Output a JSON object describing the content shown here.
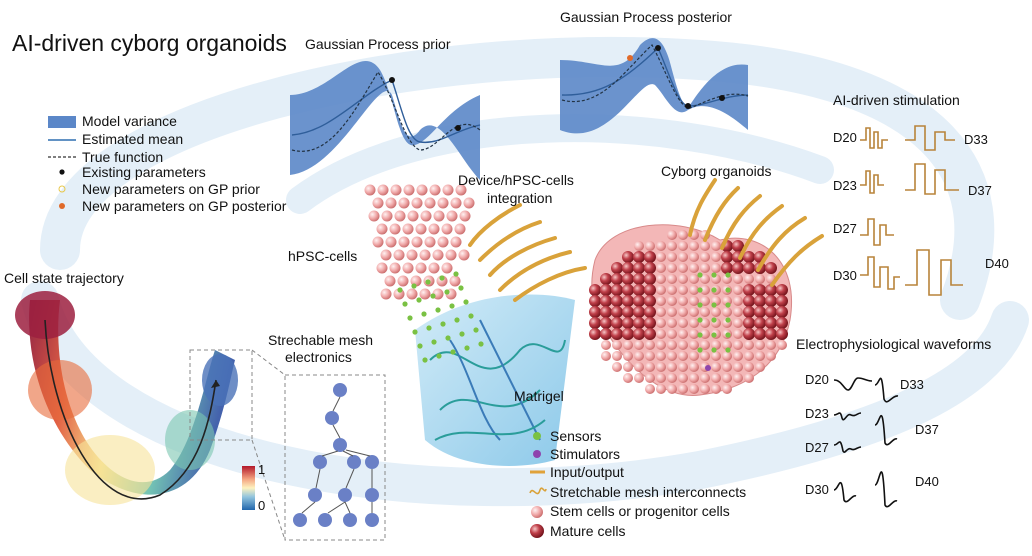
{
  "title": "AI-driven cyborg organoids",
  "gp_prior_title": "Gaussian Process prior",
  "gp_posterior_title": "Gaussian Process posterior",
  "legend": {
    "model_variance": "Model variance",
    "estimated_mean": "Estimated mean",
    "true_function": "True function",
    "existing_parameters": "Existing parameters",
    "new_params_prior": "New parameters on GP prior",
    "new_params_posterior": "New parameters on GP posterior"
  },
  "labels": {
    "cell_state_trajectory": "Cell state trajectory",
    "hpsc_cells": "hPSC-cells",
    "integration_line1": "Device/hPSC-cells",
    "integration_line2": "integration",
    "stretchable_mesh_line1": "Strechable mesh",
    "stretchable_mesh_line2": "electronics",
    "matrigel": "Matrigel",
    "cyborg_organoids": "Cyborg organoids",
    "colorbar_max": "1",
    "colorbar_min": "0"
  },
  "component_legend": {
    "sensors": "Sensors",
    "stimulators": "Stimulators",
    "input_output": "Input/output",
    "interconnects": "Stretchable mesh interconnects",
    "stem_cells": "Stem cells or progenitor cells",
    "mature_cells": "Mature cells"
  },
  "stimulation": {
    "title": "AI-driven stimulation",
    "left_days": [
      "D20",
      "D23",
      "D27",
      "D30"
    ],
    "right_days": [
      "D33",
      "D37",
      "D40"
    ]
  },
  "electrophysiology": {
    "title": "Electrophysiological waveforms",
    "left_days": [
      "D20",
      "D23",
      "D27",
      "D30"
    ],
    "right_days": [
      "D33",
      "D37",
      "D40"
    ]
  },
  "colors": {
    "variance_blue": "#5b87c8",
    "mean_line": "#2f6fb0",
    "orange_wire": "#e0a23a",
    "sensor_green": "#7ac143",
    "stimulator_purple": "#8e44ad",
    "matrigel_blue": "#9fd3ee",
    "cell_pink": "#f2b5b5",
    "mature_red": "#b8323a"
  }
}
